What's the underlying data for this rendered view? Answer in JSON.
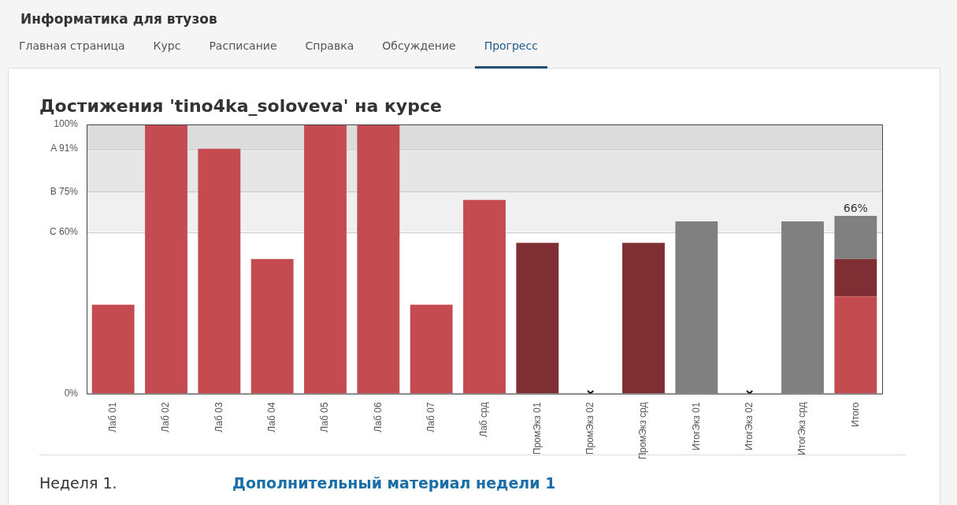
{
  "chart_data": {
    "type": "bar",
    "title": "Достижения 'tino4ka_soloveva' на курсе",
    "annotations": [
      "Информатика для втузов",
      "Главная страница",
      "Курс",
      "Расписание",
      "Справка",
      "Обсуждение",
      "Прогресс",
      "Неделя 1.",
      "Дополнительный материал недели 1"
    ],
    "categories": [
      "Лаб 01",
      "Лаб 02",
      "Лаб 03",
      "Лаб 04",
      "Лаб 05",
      "Лаб 06",
      "Лаб 07",
      "Лаб срд",
      "ПромЭкз 01",
      "ПромЭкз 02",
      "ПромЭкз срд",
      "ИтогЭкз 01",
      "ИтогЭкз 02",
      "ИтогЭкз срд",
      "Итого"
    ],
    "stacked": true,
    "series": [
      {
        "color": "#c44b4f",
        "values": [
          33,
          100,
          91,
          50,
          100,
          100,
          33,
          72,
          null,
          null,
          null,
          null,
          null,
          null,
          36
        ]
      },
      {
        "color": "#7f2f33",
        "values": [
          null,
          null,
          null,
          null,
          null,
          null,
          null,
          null,
          56,
          null,
          56,
          null,
          null,
          null,
          14
        ]
      },
      {
        "color": "#808080",
        "values": [
          null,
          null,
          null,
          null,
          null,
          null,
          null,
          null,
          null,
          null,
          null,
          64,
          null,
          64,
          16
        ]
      },
      {
        "type": "scatter",
        "marker": "cross",
        "color": "#000000",
        "values": [
          null,
          null,
          null,
          null,
          null,
          null,
          null,
          null,
          null,
          0,
          null,
          null,
          0,
          null,
          null
        ]
      }
    ],
    "totals": [
      null,
      null,
      null,
      null,
      null,
      null,
      null,
      null,
      null,
      null,
      null,
      null,
      null,
      null,
      "66%"
    ],
    "ylim": [
      0,
      100
    ],
    "yticks": [
      {
        "value": 0,
        "label": "0%"
      },
      {
        "value": 60,
        "label": "C 60%"
      },
      {
        "value": 75,
        "label": "B 75%"
      },
      {
        "value": 91,
        "label": "A 91%"
      },
      {
        "value": 100,
        "label": "100%"
      }
    ],
    "bands": [
      {
        "axis": "y",
        "from": 60,
        "to": 75,
        "color": "#f0f0f0"
      },
      {
        "axis": "y",
        "from": 75,
        "to": 91,
        "color": "#e6e6e6"
      },
      {
        "axis": "y",
        "from": 91,
        "to": 100,
        "color": "#dcdcdc"
      }
    ],
    "grid": "y",
    "legend": false
  }
}
